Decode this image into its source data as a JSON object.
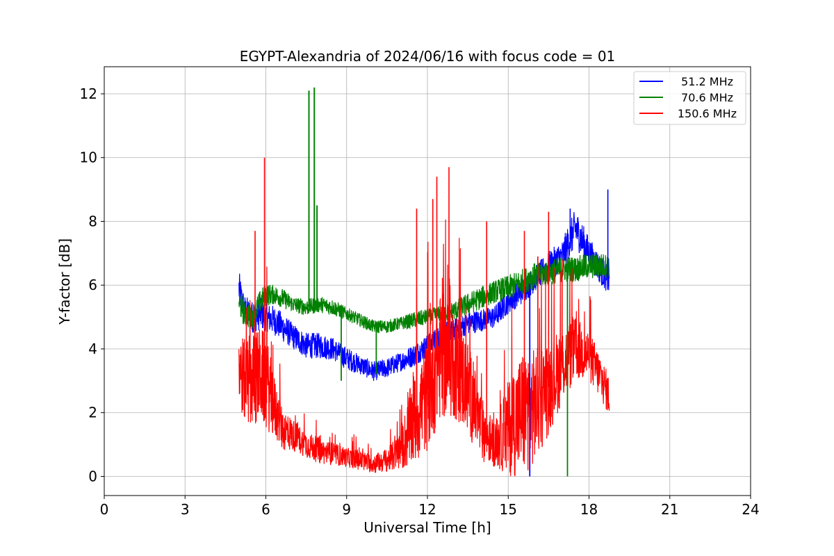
{
  "chart_data": {
    "type": "line",
    "title": "EGYPT-Alexandria of 2024/06/16 with focus code = 01",
    "xlabel": "Universal Time [h]",
    "ylabel": "Y-factor [dB]",
    "xlim": [
      0,
      24
    ],
    "ylim": [
      -0.6,
      12.85
    ],
    "xticks": [
      0,
      3,
      6,
      9,
      12,
      15,
      18,
      21,
      24
    ],
    "yticks": [
      0,
      2,
      4,
      6,
      8,
      10,
      12
    ],
    "xtick_labels": [
      "0",
      "3",
      "6",
      "9",
      "12",
      "15",
      "18",
      "21",
      "24"
    ],
    "ytick_labels": [
      "0",
      "2",
      "4",
      "6",
      "8",
      "10",
      "12"
    ],
    "grid": true,
    "legend_position": "top-right",
    "series": [
      {
        "name": "51.2 MHz",
        "color": "#0000ff",
        "x": [
          5.0,
          5.2,
          5.5,
          5.8,
          6.0,
          6.3,
          6.6,
          7.0,
          7.5,
          8.0,
          8.5,
          9.0,
          9.5,
          10.0,
          10.5,
          11.0,
          11.5,
          12.0,
          12.5,
          13.0,
          13.5,
          14.0,
          14.5,
          15.0,
          15.5,
          16.0,
          16.5,
          17.0,
          17.5,
          18.0,
          18.5,
          18.75
        ],
        "y": [
          5.9,
          5.2,
          5.0,
          5.1,
          5.0,
          4.9,
          4.7,
          4.4,
          4.1,
          4.1,
          4.0,
          3.7,
          3.5,
          3.3,
          3.4,
          3.6,
          3.8,
          4.1,
          4.4,
          4.6,
          4.8,
          4.9,
          5.0,
          5.5,
          5.8,
          6.2,
          6.6,
          6.9,
          7.8,
          7.0,
          6.4,
          6.1
        ],
        "noise": [
          0.55,
          0.5,
          0.5,
          0.5,
          0.45,
          0.45,
          0.45,
          0.4,
          0.4,
          0.4,
          0.35,
          0.35,
          0.3,
          0.3,
          0.3,
          0.3,
          0.35,
          0.35,
          0.35,
          0.35,
          0.35,
          0.35,
          0.35,
          0.4,
          0.4,
          0.4,
          0.45,
          0.5,
          0.6,
          0.5,
          0.45,
          0.4
        ]
      },
      {
        "name": "70.6 MHz",
        "color": "#008000",
        "x": [
          5.0,
          5.2,
          5.5,
          5.8,
          6.0,
          6.3,
          6.6,
          7.0,
          7.5,
          8.0,
          8.5,
          9.0,
          9.5,
          10.0,
          10.5,
          11.0,
          11.5,
          12.0,
          12.5,
          13.0,
          13.5,
          14.0,
          14.5,
          15.0,
          15.5,
          16.0,
          16.5,
          17.0,
          17.5,
          18.0,
          18.5,
          18.75
        ],
        "y": [
          5.5,
          5.1,
          5.0,
          5.5,
          5.7,
          5.7,
          5.6,
          5.4,
          5.3,
          5.4,
          5.3,
          5.1,
          4.9,
          4.7,
          4.7,
          4.8,
          4.9,
          5.0,
          5.1,
          5.2,
          5.4,
          5.6,
          5.8,
          5.9,
          6.1,
          6.3,
          6.4,
          6.5,
          6.5,
          6.6,
          6.6,
          6.6
        ],
        "noise": [
          0.45,
          0.4,
          0.4,
          0.35,
          0.35,
          0.3,
          0.3,
          0.25,
          0.25,
          0.25,
          0.25,
          0.2,
          0.2,
          0.2,
          0.2,
          0.2,
          0.25,
          0.25,
          0.25,
          0.3,
          0.35,
          0.35,
          0.35,
          0.4,
          0.4,
          0.4,
          0.4,
          0.4,
          0.4,
          0.4,
          0.4,
          0.35
        ]
      },
      {
        "name": "150.6 MHz",
        "color": "#ff0000",
        "x": [
          5.0,
          5.2,
          5.5,
          5.8,
          6.0,
          6.3,
          6.6,
          7.0,
          7.5,
          8.0,
          8.5,
          9.0,
          9.5,
          10.0,
          10.5,
          11.0,
          11.5,
          12.0,
          12.5,
          13.0,
          13.5,
          14.0,
          14.5,
          15.0,
          15.5,
          16.0,
          16.5,
          17.0,
          17.5,
          18.0,
          18.5,
          18.75
        ],
        "y": [
          3.5,
          3.0,
          3.0,
          3.2,
          3.0,
          2.2,
          1.5,
          1.3,
          1.0,
          0.8,
          0.7,
          0.6,
          0.5,
          0.4,
          0.5,
          0.8,
          1.8,
          2.6,
          3.8,
          3.6,
          2.8,
          1.5,
          1.0,
          1.5,
          2.0,
          2.2,
          2.8,
          3.5,
          4.0,
          3.8,
          3.0,
          2.5
        ],
        "noise": [
          1.3,
          1.3,
          1.5,
          1.5,
          1.5,
          1.0,
          0.7,
          0.5,
          0.4,
          0.4,
          0.35,
          0.3,
          0.3,
          0.3,
          0.35,
          0.6,
          1.5,
          1.8,
          2.0,
          1.8,
          1.5,
          1.0,
          0.7,
          1.5,
          2.0,
          1.8,
          1.5,
          1.2,
          1.0,
          0.8,
          0.7,
          0.6
        ],
        "spikes": [
          [
            5.6,
            7.7
          ],
          [
            5.95,
            10.0
          ],
          [
            11.6,
            8.4
          ],
          [
            12.2,
            8.7
          ],
          [
            12.35,
            9.4
          ],
          [
            12.8,
            9.7
          ],
          [
            14.2,
            8.0
          ],
          [
            15.6,
            7.7
          ],
          [
            16.1,
            6.9
          ],
          [
            16.5,
            8.3
          ],
          [
            17.0,
            6.8
          ]
        ]
      }
    ],
    "annotations": {
      "green_spikes": [
        [
          7.6,
          12.1
        ],
        [
          7.8,
          12.2
        ],
        [
          7.9,
          8.5
        ]
      ],
      "blue_spikes": [
        [
          18.7,
          9.0
        ],
        [
          17.3,
          8.4
        ]
      ],
      "dips": [
        [
          15.8,
          0.0,
          "#0000ff"
        ],
        [
          17.2,
          0.0,
          "#008000"
        ],
        [
          8.8,
          3.0,
          "#008000"
        ],
        [
          10.1,
          3.2,
          "#008000"
        ]
      ]
    }
  }
}
